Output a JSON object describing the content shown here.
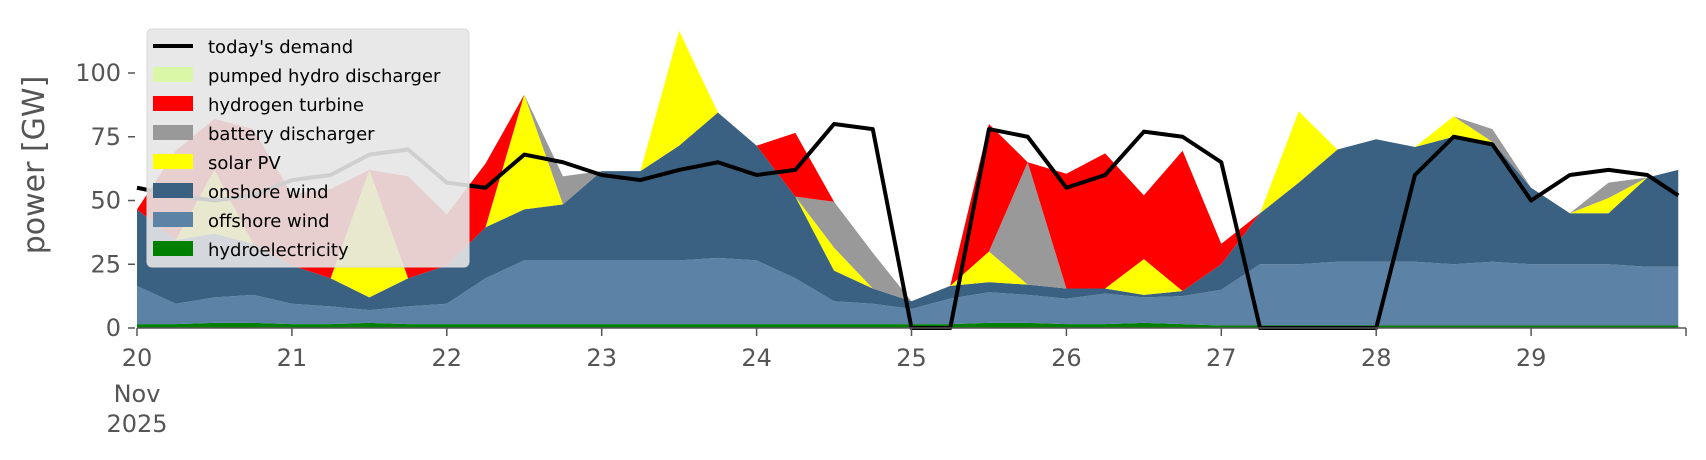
{
  "chart_data": {
    "type": "area",
    "ylabel": "power [GW]",
    "xlabel": "",
    "xlim": [
      20,
      30
    ],
    "ylim": [
      0,
      120
    ],
    "yticks": [
      0,
      25,
      50,
      75,
      100
    ],
    "xticks": [
      {
        "value": 20,
        "label": "20"
      },
      {
        "value": 21,
        "label": "21"
      },
      {
        "value": 22,
        "label": "22"
      },
      {
        "value": 23,
        "label": "23"
      },
      {
        "value": 24,
        "label": "24"
      },
      {
        "value": 25,
        "label": "25"
      },
      {
        "value": 26,
        "label": "26"
      },
      {
        "value": 27,
        "label": "27"
      },
      {
        "value": 28,
        "label": "28"
      },
      {
        "value": 29,
        "label": "29"
      }
    ],
    "x_extra_labels": [
      "Nov",
      "2025"
    ],
    "grid": false,
    "legend_position": "top-left",
    "legend": [
      {
        "name": "today's demand",
        "color": "#000000",
        "kind": "line"
      },
      {
        "name": "pumped hydro discharger",
        "color": "#d9f7a6",
        "kind": "area"
      },
      {
        "name": "hydrogen turbine",
        "color": "#ff0000",
        "kind": "area"
      },
      {
        "name": "battery discharger",
        "color": "#999999",
        "kind": "area"
      },
      {
        "name": "solar PV",
        "color": "#ffff00",
        "kind": "area"
      },
      {
        "name": "onshore wind",
        "color": "#3b6182",
        "kind": "area"
      },
      {
        "name": "offshore wind",
        "color": "#5c83a6",
        "kind": "area"
      },
      {
        "name": "hydroelectricity",
        "color": "#008000",
        "kind": "area"
      }
    ],
    "x": [
      20.0,
      20.25,
      20.5,
      20.75,
      21.0,
      21.25,
      21.5,
      21.75,
      22.0,
      22.25,
      22.5,
      22.75,
      23.0,
      23.25,
      23.5,
      23.75,
      24.0,
      24.25,
      24.5,
      24.75,
      25.0,
      25.25,
      25.5,
      25.75,
      26.0,
      26.25,
      26.5,
      26.75,
      27.0,
      27.25,
      27.5,
      27.75,
      28.0,
      28.25,
      28.5,
      28.75,
      29.0,
      29.25,
      29.5,
      29.75,
      29.95
    ],
    "series": [
      {
        "name": "hydroelectricity",
        "color": "#008000",
        "values": [
          1.5,
          1.5,
          2,
          2,
          1.5,
          1.5,
          2,
          1.5,
          1.5,
          1.5,
          1.5,
          1.5,
          1.5,
          1.5,
          1.5,
          1.5,
          1.5,
          1.5,
          1.5,
          1.5,
          1.5,
          1.5,
          2,
          2,
          1.5,
          1.5,
          2,
          1.5,
          1,
          1,
          1,
          1,
          1,
          1,
          1,
          1,
          1,
          1,
          1,
          1,
          1
        ]
      },
      {
        "name": "offshore wind",
        "color": "#5c83a6",
        "values": [
          15,
          8,
          10,
          11,
          8,
          7,
          5,
          7,
          8,
          18,
          25,
          25,
          25,
          25,
          25,
          26,
          25,
          18,
          9,
          8,
          6,
          10,
          12,
          11,
          10,
          12,
          10,
          11,
          14,
          24,
          24,
          25,
          25,
          25,
          24,
          25,
          24,
          24,
          24,
          23,
          23
        ]
      },
      {
        "name": "onshore wind",
        "color": "#3b6182",
        "values": [
          30,
          25,
          25,
          20,
          15,
          11,
          5,
          11,
          15,
          20,
          20,
          22,
          35,
          35,
          45,
          57,
          45,
          32,
          12,
          6,
          3,
          5,
          4,
          4,
          4,
          2,
          1,
          2,
          10,
          20,
          32,
          44,
          48,
          45,
          50,
          47,
          30,
          20,
          20,
          35,
          38
        ]
      },
      {
        "name": "solar PV",
        "color": "#ffff00",
        "values": [
          0,
          0,
          25,
          0,
          0,
          0,
          50,
          0,
          0,
          0,
          45,
          0,
          0,
          0,
          45,
          0,
          0,
          0,
          9,
          0,
          0,
          0,
          12,
          0,
          0,
          0,
          14,
          0,
          0,
          0,
          28,
          0,
          0,
          0,
          8,
          0,
          0,
          0,
          6,
          0,
          0
        ]
      },
      {
        "name": "battery discharger",
        "color": "#999999",
        "values": [
          0,
          0,
          0,
          0,
          0,
          0,
          0,
          0,
          0,
          0,
          0,
          11,
          0,
          0,
          0,
          0,
          0,
          0,
          18,
          14,
          0,
          0,
          0,
          48,
          0,
          0,
          0,
          0,
          0,
          0,
          0,
          0,
          0,
          0,
          0,
          5,
          0,
          0,
          6,
          0,
          0
        ]
      },
      {
        "name": "hydrogen turbine",
        "color": "#ff0000",
        "values": [
          0,
          35,
          20,
          45,
          28,
          35,
          0,
          40,
          20,
          25,
          0,
          0,
          0,
          0,
          0,
          0,
          0,
          25,
          0,
          0,
          0,
          0,
          50,
          0,
          45,
          53,
          25,
          55,
          8,
          0,
          0,
          0,
          0,
          0,
          0,
          0,
          0,
          0,
          0,
          0,
          0
        ]
      },
      {
        "name": "pumped hydro discharger",
        "color": "#d9f7a6",
        "values": [
          0,
          0,
          0,
          0,
          0,
          0,
          0,
          0,
          0,
          0,
          0,
          0,
          0,
          0,
          0,
          0,
          0,
          0,
          0,
          0,
          0,
          0,
          0,
          0,
          0,
          0,
          0,
          0,
          0,
          0,
          0,
          0,
          0,
          0,
          0,
          0,
          0,
          0,
          0,
          0,
          0
        ]
      },
      {
        "name": "today's demand",
        "color": "#000000",
        "kind": "line",
        "values": [
          55,
          52,
          50,
          52,
          58,
          60,
          68,
          70,
          57,
          55,
          68,
          65,
          60,
          58,
          62,
          65,
          60,
          62,
          80,
          78,
          0,
          0,
          78,
          75,
          55,
          60,
          77,
          75,
          65,
          0,
          0,
          0,
          0,
          60,
          75,
          72,
          50,
          60,
          62,
          60,
          52
        ]
      }
    ]
  }
}
